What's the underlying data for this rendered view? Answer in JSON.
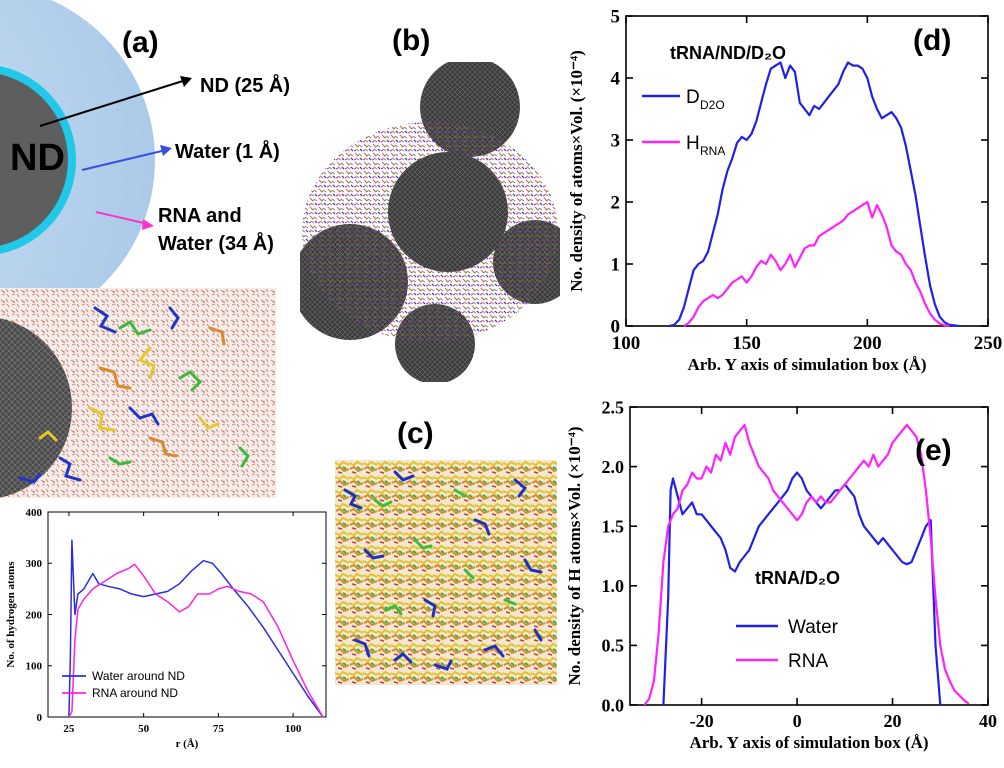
{
  "labels": {
    "a": "(a)",
    "b": "(b)",
    "c": "(c)",
    "d": "(d)",
    "e": "(e)"
  },
  "schematic": {
    "core": "ND",
    "nd_label": "ND (25 Å)",
    "water_label": "Water (1 Å)",
    "rna_label_1": "RNA and",
    "rna_label_2": "Water (34 Å)",
    "colors": {
      "core": "#5e5e5e",
      "shell": "#22c8e8",
      "outer": "#b8d6ee",
      "nd_arrow": "#000000",
      "water_arrow": "#3a4fe0",
      "rna_arrow": "#ff33cc"
    }
  },
  "chart_data": [
    {
      "id": "a-inset",
      "type": "line",
      "xlabel": "r (Å)",
      "ylabel": "No. of hydrogen atoms",
      "xlim": [
        18,
        111
      ],
      "ylim": [
        0,
        400
      ],
      "xticks": [
        25,
        50,
        75,
        100
      ],
      "yticks": [
        0,
        100,
        200,
        300,
        400
      ],
      "legend": "bottom-left",
      "series": [
        {
          "name": "Water around ND",
          "color": "#2a2ee0",
          "x": [
            25,
            25.5,
            26,
            27,
            28,
            30,
            32,
            33,
            35,
            38,
            42,
            46,
            50,
            54,
            58,
            62,
            66,
            70,
            73,
            76,
            80,
            85,
            90,
            95,
            100,
            105,
            110
          ],
          "y": [
            0,
            120,
            345,
            200,
            240,
            250,
            270,
            280,
            260,
            255,
            250,
            240,
            235,
            240,
            245,
            260,
            285,
            305,
            300,
            280,
            250,
            215,
            175,
            130,
            85,
            40,
            0
          ]
        },
        {
          "name": "RNA around ND",
          "color": "#ff22dd",
          "x": [
            25,
            26,
            27,
            28,
            30,
            33,
            37,
            41,
            45,
            47,
            50,
            54,
            58,
            62,
            65,
            68,
            72,
            75,
            78,
            82,
            86,
            90,
            95,
            100,
            105,
            108,
            110
          ],
          "y": [
            0,
            10,
            150,
            210,
            230,
            250,
            265,
            280,
            290,
            298,
            275,
            240,
            225,
            205,
            215,
            240,
            240,
            250,
            255,
            245,
            240,
            225,
            175,
            110,
            50,
            20,
            0
          ]
        }
      ]
    },
    {
      "id": "d",
      "type": "line",
      "title": "tRNA/ND/D₂O",
      "xlabel": "Arb. Y axis of simulation box (Å)",
      "ylabel": "No. density of atoms×Vol. (×10⁻⁴)",
      "xlim": [
        100,
        250
      ],
      "ylim": [
        0,
        5
      ],
      "xticks": [
        100,
        150,
        200,
        250
      ],
      "yticks": [
        0,
        1,
        2,
        3,
        4,
        5
      ],
      "legend": "top-left",
      "series": [
        {
          "name": "D",
          "sub": "D2O",
          "color": "#2020e8",
          "x": [
            118,
            120,
            122,
            124,
            126,
            128,
            130,
            132,
            134,
            136,
            138,
            140,
            142,
            144,
            146,
            148,
            150,
            152,
            154,
            156,
            158,
            160,
            162,
            164,
            166,
            168,
            170,
            172,
            174,
            176,
            178,
            180,
            182,
            184,
            186,
            188,
            190,
            192,
            194,
            196,
            198,
            200,
            202,
            204,
            206,
            208,
            210,
            212,
            214,
            216,
            218,
            220,
            222,
            224,
            226,
            228,
            230,
            232,
            234,
            236,
            238
          ],
          "y": [
            0,
            0.02,
            0.1,
            0.3,
            0.6,
            0.9,
            1.0,
            1.05,
            1.2,
            1.5,
            1.8,
            2.2,
            2.5,
            2.7,
            2.95,
            3.05,
            3.0,
            3.1,
            3.3,
            3.6,
            3.9,
            4.15,
            4.2,
            4.25,
            4.0,
            4.2,
            4.1,
            3.6,
            3.5,
            3.4,
            3.55,
            3.5,
            3.6,
            3.7,
            3.8,
            3.9,
            4.1,
            4.25,
            4.2,
            4.2,
            4.15,
            4.0,
            3.7,
            3.5,
            3.35,
            3.4,
            3.45,
            3.35,
            3.2,
            2.9,
            2.5,
            2.1,
            1.6,
            1.1,
            0.65,
            0.35,
            0.15,
            0.06,
            0.02,
            0.01,
            0
          ]
        },
        {
          "name": "H",
          "sub": "RNA",
          "color": "#ff22ff",
          "x": [
            124,
            126,
            128,
            130,
            132,
            134,
            136,
            138,
            140,
            142,
            144,
            146,
            148,
            150,
            152,
            154,
            156,
            158,
            160,
            162,
            164,
            166,
            168,
            170,
            172,
            174,
            176,
            178,
            180,
            182,
            184,
            186,
            188,
            190,
            192,
            194,
            196,
            198,
            200,
            202,
            204,
            206,
            208,
            210,
            212,
            214,
            216,
            218,
            220,
            222,
            224,
            226,
            228,
            230,
            232,
            234
          ],
          "y": [
            0,
            0.05,
            0.15,
            0.3,
            0.4,
            0.45,
            0.5,
            0.45,
            0.5,
            0.6,
            0.7,
            0.75,
            0.8,
            0.7,
            0.8,
            0.95,
            1.05,
            1.0,
            1.15,
            1.05,
            0.9,
            1.0,
            1.15,
            0.95,
            1.1,
            1.25,
            1.3,
            1.3,
            1.45,
            1.5,
            1.55,
            1.6,
            1.65,
            1.7,
            1.8,
            1.85,
            1.9,
            1.95,
            2.0,
            1.75,
            1.95,
            1.8,
            1.6,
            1.3,
            1.2,
            1.15,
            1.0,
            0.9,
            0.7,
            0.55,
            0.35,
            0.2,
            0.1,
            0.04,
            0.01,
            0
          ]
        }
      ]
    },
    {
      "id": "e",
      "type": "line",
      "title": "tRNA/D₂O",
      "xlabel": "Arb. Y axis of simulation box (Å)",
      "ylabel": "No. density of H atoms×Vol. (×10⁻⁴)",
      "xlim": [
        -35,
        40
      ],
      "ylim": [
        0,
        2.5
      ],
      "xticks": [
        -20,
        0,
        20,
        40
      ],
      "yticks": [
        0.0,
        0.5,
        1.0,
        1.5,
        2.0,
        2.5
      ],
      "legend": "bottom-center",
      "series": [
        {
          "name": "Water",
          "color": "#2020e8",
          "x": [
            -28,
            -27,
            -26.5,
            -26,
            -25,
            -24,
            -23,
            -22,
            -21,
            -20,
            -19,
            -18,
            -17,
            -16,
            -15,
            -14,
            -13,
            -12,
            -11,
            -10,
            -9,
            -8,
            -7,
            -6,
            -5,
            -4,
            -3,
            -2,
            -1,
            0,
            1,
            2,
            3,
            4,
            5,
            6,
            7,
            8,
            9,
            10,
            11,
            12,
            13,
            14,
            15,
            16,
            17,
            18,
            19,
            20,
            21,
            22,
            23,
            24,
            25,
            26,
            27,
            28,
            29,
            30
          ],
          "y": [
            0,
            0.9,
            1.8,
            1.9,
            1.75,
            1.6,
            1.65,
            1.7,
            1.6,
            1.6,
            1.55,
            1.5,
            1.45,
            1.4,
            1.3,
            1.15,
            1.12,
            1.2,
            1.25,
            1.3,
            1.4,
            1.5,
            1.55,
            1.6,
            1.65,
            1.7,
            1.75,
            1.8,
            1.9,
            1.95,
            1.9,
            1.8,
            1.75,
            1.7,
            1.65,
            1.7,
            1.75,
            1.8,
            1.8,
            1.85,
            1.8,
            1.75,
            1.6,
            1.5,
            1.45,
            1.4,
            1.35,
            1.4,
            1.35,
            1.3,
            1.25,
            1.2,
            1.18,
            1.2,
            1.3,
            1.4,
            1.5,
            1.55,
            0.5,
            0
          ]
        },
        {
          "name": "RNA",
          "color": "#ff22ff",
          "x": [
            -32,
            -31,
            -30,
            -29,
            -28,
            -27,
            -26,
            -25,
            -24,
            -23,
            -22,
            -21,
            -20,
            -19,
            -18,
            -17,
            -16,
            -15,
            -14,
            -13,
            -12,
            -11,
            -10,
            -9,
            -8,
            -7,
            -6,
            -5,
            -4,
            -3,
            -2,
            -1,
            0,
            1,
            2,
            3,
            4,
            5,
            6,
            7,
            8,
            9,
            10,
            11,
            12,
            13,
            14,
            15,
            16,
            17,
            18,
            19,
            20,
            21,
            22,
            23,
            24,
            25,
            26,
            27,
            28,
            29,
            30,
            31,
            32,
            33,
            34,
            35,
            36
          ],
          "y": [
            0,
            0.05,
            0.2,
            0.6,
            1.2,
            1.5,
            1.6,
            1.65,
            1.8,
            1.85,
            1.95,
            1.9,
            1.9,
            2.0,
            1.95,
            2.1,
            2.05,
            2.2,
            2.1,
            2.25,
            2.3,
            2.35,
            2.2,
            2.1,
            2.0,
            1.95,
            1.9,
            1.8,
            1.75,
            1.7,
            1.65,
            1.6,
            1.55,
            1.6,
            1.7,
            1.75,
            1.7,
            1.75,
            1.7,
            1.7,
            1.75,
            1.8,
            1.85,
            1.9,
            1.95,
            2.0,
            2.05,
            2.0,
            2.1,
            2.0,
            2.05,
            2.1,
            2.2,
            2.25,
            2.3,
            2.35,
            2.3,
            2.25,
            2.1,
            1.8,
            1.4,
            0.9,
            0.5,
            0.3,
            0.2,
            0.12,
            0.08,
            0.04,
            0.01
          ]
        }
      ]
    }
  ]
}
